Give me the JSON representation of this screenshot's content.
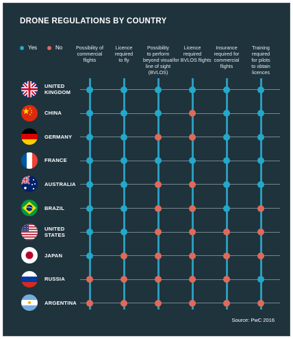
{
  "colors": {
    "yes": "#22a9c9",
    "no": "#e06a5a",
    "vertical_line": "#2b9cbd"
  },
  "header": {
    "title": "DRONE REGULATIONS BY COUNTRY"
  },
  "legend": {
    "yes": "Yes",
    "no": "No"
  },
  "footer": {
    "source": "Source: PwC 2016"
  },
  "chart_data": {
    "type": "table",
    "title": "DRONE REGULATIONS BY COUNTRY",
    "columns": [
      "Possibility of commercial flights",
      "Licence required to fly",
      "Possibility to perform beyond visual line of sight (BVLOS)",
      "Licence required for BVLOS flights",
      "Insurance required for commercial flights",
      "Training required for pilots to obtain licences"
    ],
    "rows": [
      {
        "country": "UNITED KINGDOM",
        "flag": "uk-flag",
        "values": [
          "Yes",
          "Yes",
          "Yes",
          "Yes",
          "Yes",
          "Yes"
        ]
      },
      {
        "country": "CHINA",
        "flag": "china-flag",
        "values": [
          "Yes",
          "Yes",
          "Yes",
          "No",
          "Yes",
          "Yes"
        ]
      },
      {
        "country": "GERMANY",
        "flag": "germany-flag",
        "values": [
          "Yes",
          "Yes",
          "No",
          "No",
          "Yes",
          "Yes"
        ]
      },
      {
        "country": "FRANCE",
        "flag": "france-flag",
        "values": [
          "Yes",
          "Yes",
          "Yes",
          "Yes",
          "Yes",
          "Yes"
        ]
      },
      {
        "country": "AUSTRALIA",
        "flag": "australia-flag",
        "values": [
          "Yes",
          "Yes",
          "No",
          "No",
          "Yes",
          "Yes"
        ]
      },
      {
        "country": "BRAZIL",
        "flag": "brazil-flag",
        "values": [
          "Yes",
          "Yes",
          "No",
          "No",
          "Yes",
          "No"
        ]
      },
      {
        "country": "UNITED STATES",
        "flag": "usa-flag",
        "values": [
          "Yes",
          "Yes",
          "No",
          "No",
          "No",
          "No"
        ]
      },
      {
        "country": "JAPAN",
        "flag": "japan-flag",
        "values": [
          "Yes",
          "No",
          "No",
          "No",
          "No",
          "No"
        ]
      },
      {
        "country": "RUSSIA",
        "flag": "russia-flag",
        "values": [
          "No",
          "No",
          "No",
          "No",
          "No",
          "Yes"
        ]
      },
      {
        "country": "ARGENTINA",
        "flag": "argentina-flag",
        "values": [
          "No",
          "No",
          "No",
          "No",
          "No",
          "No"
        ]
      }
    ],
    "legend": [
      "Yes",
      "No"
    ],
    "source": "Source: PwC 2016"
  }
}
